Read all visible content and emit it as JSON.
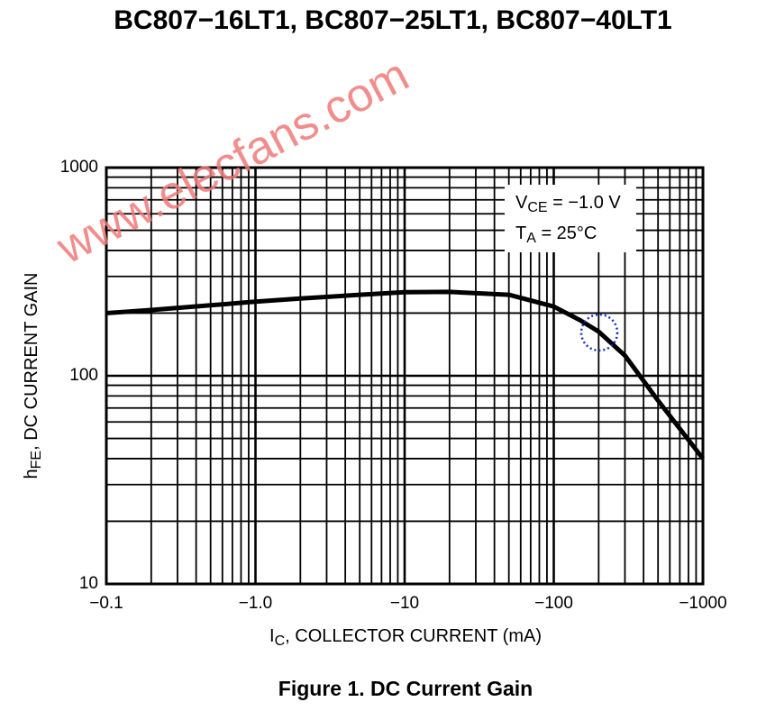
{
  "chart_data": {
    "type": "line",
    "title": "BC807−16LT1, BC807−25LT1, BC807−40LT1",
    "caption": "Figure 1. DC Current Gain",
    "watermark": "www.elecfans.com",
    "x_label": {
      "text": "I",
      "sub": "C",
      "after": ", COLLECTOR CURRENT (mA)"
    },
    "y_label": {
      "text": "h",
      "sub": "FE",
      "after": ", DC CURRENT GAIN"
    },
    "annotations": [
      {
        "text": "V",
        "sub": "CE",
        "after": " = −1.0 V"
      },
      {
        "text": "T",
        "sub": "A",
        "after": " = 25°C"
      }
    ],
    "x": [
      -0.1,
      -0.2,
      -0.5,
      -1,
      -2,
      -5,
      -10,
      -20,
      -50,
      -100,
      -150,
      -200,
      -300,
      -500,
      -1000
    ],
    "values": [
      200,
      207,
      218,
      227,
      235,
      245,
      252,
      253,
      245,
      215,
      185,
      163,
      125,
      76,
      40
    ],
    "color": "#000000",
    "xscale": "log",
    "yscale": "log",
    "xlim": [
      -0.1,
      -1000
    ],
    "ylim": [
      10,
      1000
    ],
    "xticks": [
      {
        "value": -0.1,
        "label": "−0.1"
      },
      {
        "value": -1,
        "label": "−1.0"
      },
      {
        "value": -10,
        "label": "−10"
      },
      {
        "value": -100,
        "label": "−100"
      },
      {
        "value": -1000,
        "label": "−1000"
      }
    ],
    "yticks": [
      10,
      100,
      1000
    ],
    "grid": true
  }
}
